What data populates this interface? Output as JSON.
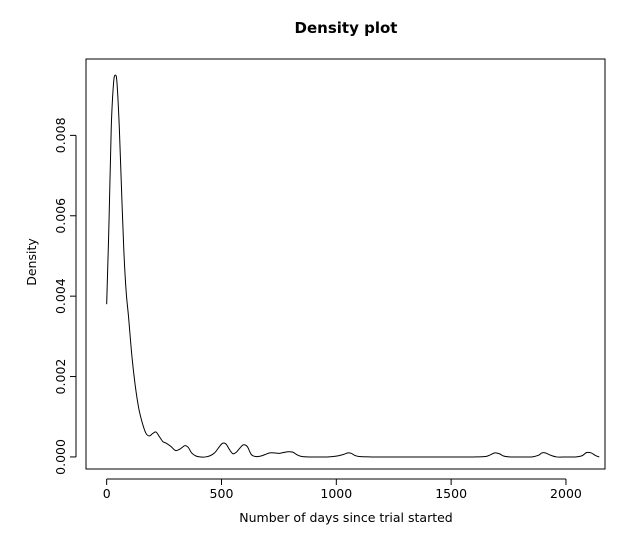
{
  "chart_data": {
    "type": "line",
    "title": "Density plot",
    "xlabel": "Number of days since trial started",
    "ylabel": "Density",
    "xlim": [
      -90,
      2170
    ],
    "ylim": [
      -0.0003,
      0.0099
    ],
    "grid": false,
    "x_ticks": [
      {
        "value": 0,
        "label": "0"
      },
      {
        "value": 500,
        "label": "500"
      },
      {
        "value": 1000,
        "label": "1000"
      },
      {
        "value": 1500,
        "label": "1500"
      },
      {
        "value": 2000,
        "label": "2000"
      }
    ],
    "y_ticks": [
      {
        "value": 0.0,
        "label": "0.000"
      },
      {
        "value": 0.002,
        "label": "0.002"
      },
      {
        "value": 0.004,
        "label": "0.004"
      },
      {
        "value": 0.006,
        "label": "0.006"
      },
      {
        "value": 0.008,
        "label": "0.008"
      }
    ],
    "series": [
      {
        "color": "#000000",
        "x": [
          0,
          10,
          20,
          30,
          38,
          45,
          55,
          65,
          75,
          85,
          95,
          110,
          125,
          140,
          155,
          170,
          185,
          200,
          215,
          230,
          245,
          260,
          280,
          300,
          320,
          340,
          355,
          370,
          390,
          410,
          430,
          450,
          470,
          490,
          505,
          520,
          535,
          550,
          565,
          580,
          595,
          612,
          630,
          650,
          670,
          690,
          710,
          730,
          750,
          770,
          790,
          810,
          830,
          850,
          880,
          920,
          960,
          1000,
          1030,
          1050,
          1065,
          1080,
          1100,
          1150,
          1200,
          1300,
          1400,
          1500,
          1600,
          1650,
          1670,
          1690,
          1710,
          1730,
          1760,
          1800,
          1850,
          1880,
          1895,
          1910,
          1930,
          1960,
          2000,
          2040,
          2070,
          2090,
          2110,
          2130,
          2145
        ],
        "y": [
          0.0038,
          0.0058,
          0.0082,
          0.0093,
          0.0095,
          0.0093,
          0.0082,
          0.0066,
          0.0051,
          0.0041,
          0.0035,
          0.0025,
          0.00175,
          0.0012,
          0.00085,
          0.0006,
          0.00052,
          0.00058,
          0.00062,
          0.0005,
          0.00038,
          0.00034,
          0.00026,
          0.00016,
          0.0002,
          0.00028,
          0.00024,
          0.0001,
          2e-05,
          0.0,
          0.0,
          3e-05,
          0.0001,
          0.00025,
          0.00034,
          0.00032,
          0.00018,
          8e-05,
          0.00012,
          0.00022,
          0.0003,
          0.00026,
          6e-05,
          1e-05,
          2e-05,
          6e-05,
          0.0001,
          0.0001,
          9e-05,
          0.00011,
          0.00013,
          0.00012,
          5e-05,
          1e-05,
          0.0,
          0.0,
          0.0,
          2e-05,
          6e-05,
          0.0001,
          9e-05,
          4e-05,
          1e-05,
          0.0,
          0.0,
          0.0,
          0.0,
          0.0,
          0.0,
          1e-05,
          5e-05,
          0.0001,
          8e-05,
          2e-05,
          0.0,
          0.0,
          0.0,
          4e-05,
          0.0001,
          0.0001,
          5e-05,
          0.0,
          0.0,
          0.0,
          3e-05,
          0.00011,
          0.0001,
          3e-05,
          0.0
        ]
      }
    ]
  }
}
